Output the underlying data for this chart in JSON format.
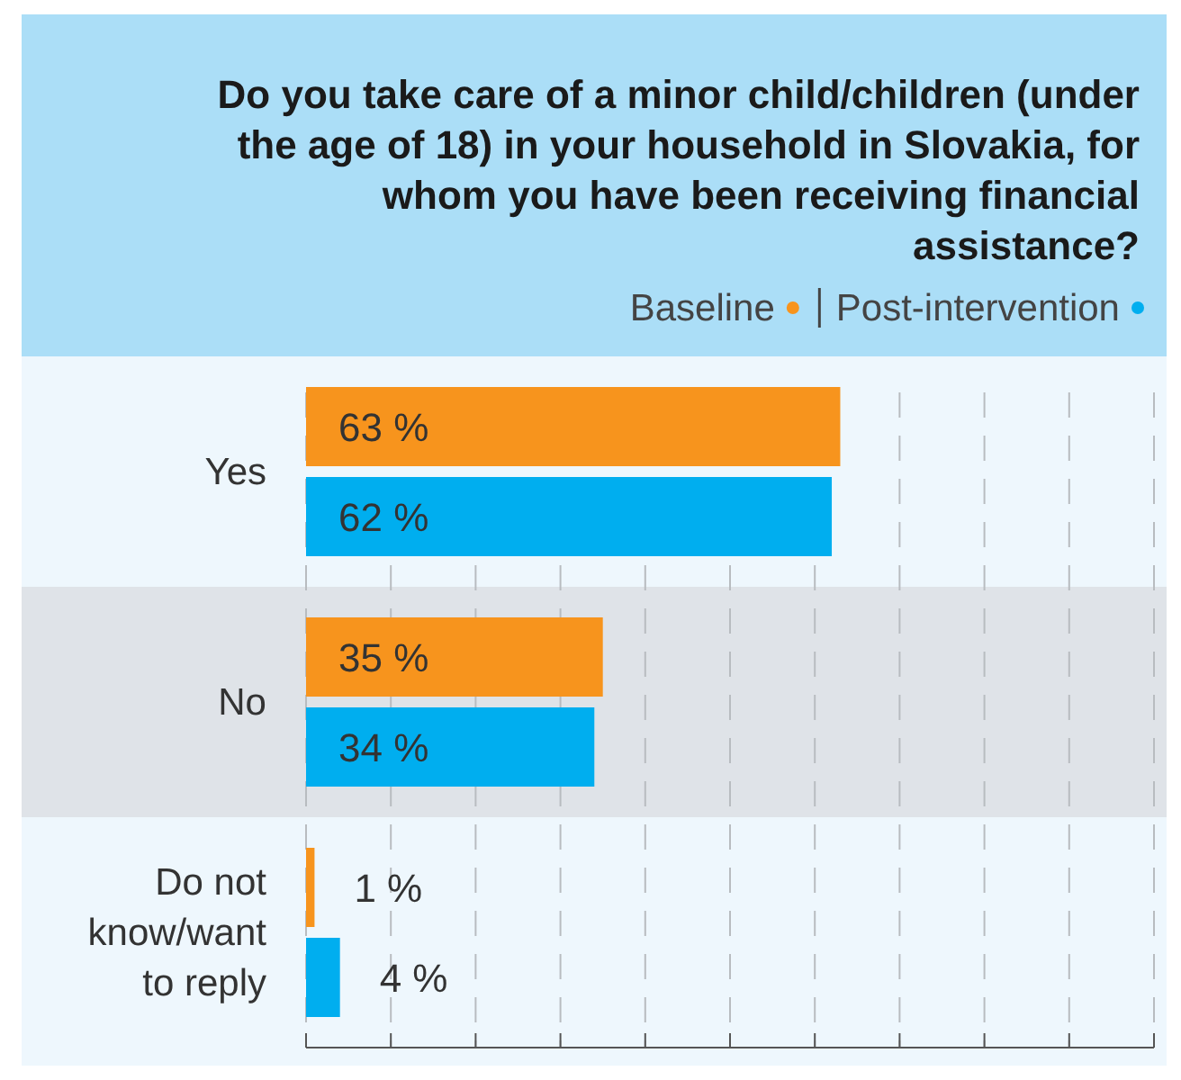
{
  "chart_data": {
    "type": "bar",
    "orientation": "horizontal",
    "title": "Do you take care of a minor child/children (under the age of 18) in your household in Slovakia, for whom you have been receiving financial assistance?",
    "categories": [
      "Yes",
      "No",
      "Do not know/want to reply"
    ],
    "series": [
      {
        "name": "Baseline",
        "color": "#f7941d",
        "values": [
          63,
          35,
          1
        ],
        "value_labels": [
          "63 %",
          "35 %",
          "1 %"
        ]
      },
      {
        "name": "Post-intervention",
        "color": "#00aeef",
        "values": [
          62,
          34,
          4
        ],
        "value_labels": [
          "62 %",
          "34 %",
          "4 %"
        ]
      }
    ],
    "xlim": [
      0,
      100
    ],
    "xticks": [
      {
        "value": 0,
        "label": null
      },
      {
        "value": 10,
        "label": null
      },
      {
        "value": 20,
        "label": null
      },
      {
        "value": 30,
        "label": null
      },
      {
        "value": 40,
        "label": null
      },
      {
        "value": 50,
        "label": null
      },
      {
        "value": 60,
        "label": null
      },
      {
        "value": 70,
        "label": null
      },
      {
        "value": 80,
        "label": null
      },
      {
        "value": 90,
        "label": null
      },
      {
        "value": 100,
        "label": null
      }
    ],
    "tick_labels": "y",
    "grid": "x",
    "legend": "top right"
  }
}
